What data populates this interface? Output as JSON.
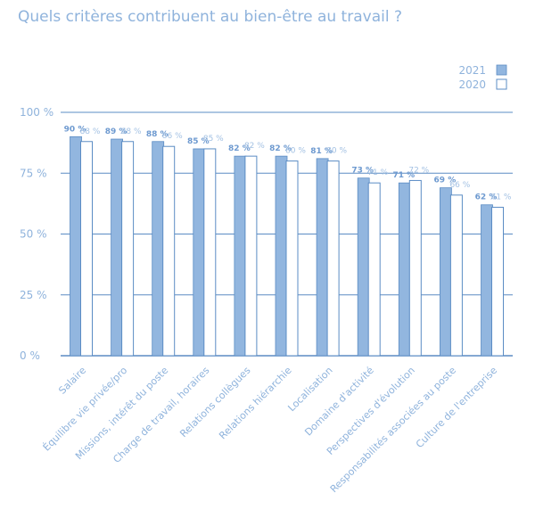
{
  "title": "Quels critères contribuent au bien-être au travail ?",
  "colors": {
    "bar_2021": "#92b6df",
    "bar_2020": "#ffffff",
    "stroke": "#5b8cc4",
    "text": "#8fb3dc",
    "label_2021": "#6e9ad0",
    "label_2020": "#a3c1e3",
    "grid": "#5b8cc4"
  },
  "chart_data": {
    "type": "bar",
    "title": "Quels critères contribuent au bien-être au travail ?",
    "categories": [
      "Salaire",
      "Équilibre vie privée/pro",
      "Missions, intérêt du poste",
      "Charge de travail, horaires",
      "Relations collègues",
      "Relations hiérarchie",
      "Localisation",
      "Domaine d'activité",
      "Perspectives d'évolution",
      "Responsabilités associées au poste",
      "Culture de l'entreprise"
    ],
    "series": [
      {
        "name": "2021",
        "values": [
          90,
          89,
          88,
          85,
          82,
          82,
          81,
          73,
          71,
          69,
          62
        ],
        "labels": [
          "90 %",
          "89 %",
          "88 %",
          "85 %",
          "82 %",
          "82 %",
          "81 %",
          "73 %",
          "71 %",
          "69 %",
          "62 %"
        ]
      },
      {
        "name": "2020",
        "values": [
          88,
          88,
          86,
          85,
          82,
          80,
          80,
          71,
          72,
          66,
          61
        ],
        "labels": [
          "88 %",
          "88 %",
          "86 %",
          "85 %",
          "82 %",
          "80 %",
          "80 %",
          "71 %",
          "72 %",
          "66 %",
          "61 %"
        ]
      }
    ],
    "yticks": [
      0,
      25,
      50,
      75,
      100
    ],
    "ytick_labels": [
      "0 %",
      "25 %",
      "50 %",
      "75 %",
      "100 %"
    ],
    "ylim": [
      0,
      100
    ],
    "grid": true,
    "legend_position": "top-right",
    "xlabel": "",
    "ylabel": ""
  }
}
